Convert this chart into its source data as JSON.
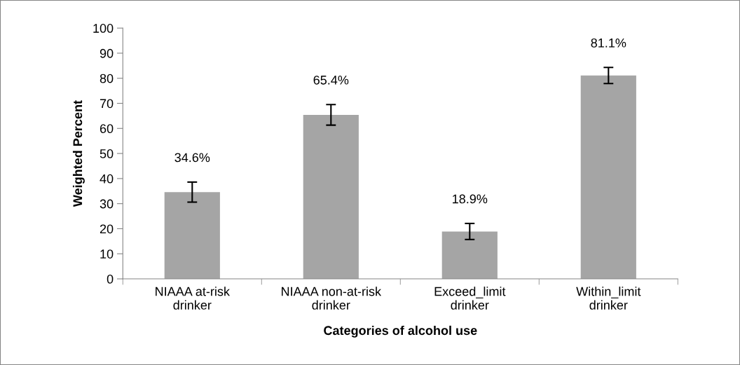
{
  "chart_data": {
    "type": "bar",
    "xlabel": "Categories of alcohol use",
    "ylabel": "Weighted Percent",
    "categories": [
      "NIAAA at-risk\ndrinker",
      "NIAAA non-at-risk\ndrinker",
      "Exceed_limit\ndrinker",
      "Within_limit\ndrinker"
    ],
    "values": [
      34.6,
      65.4,
      18.9,
      81.1
    ],
    "errors": [
      4,
      4.1,
      3.2,
      3.2
    ],
    "value_labels": [
      "34.6%",
      "65.4%",
      "18.9%",
      "81.1%"
    ],
    "color": "#a5a5a5",
    "ylim": [
      0,
      100
    ],
    "yticks": [
      0,
      10,
      20,
      30,
      40,
      50,
      60,
      70,
      80,
      90,
      100
    ],
    "grid": false,
    "legend": false
  }
}
